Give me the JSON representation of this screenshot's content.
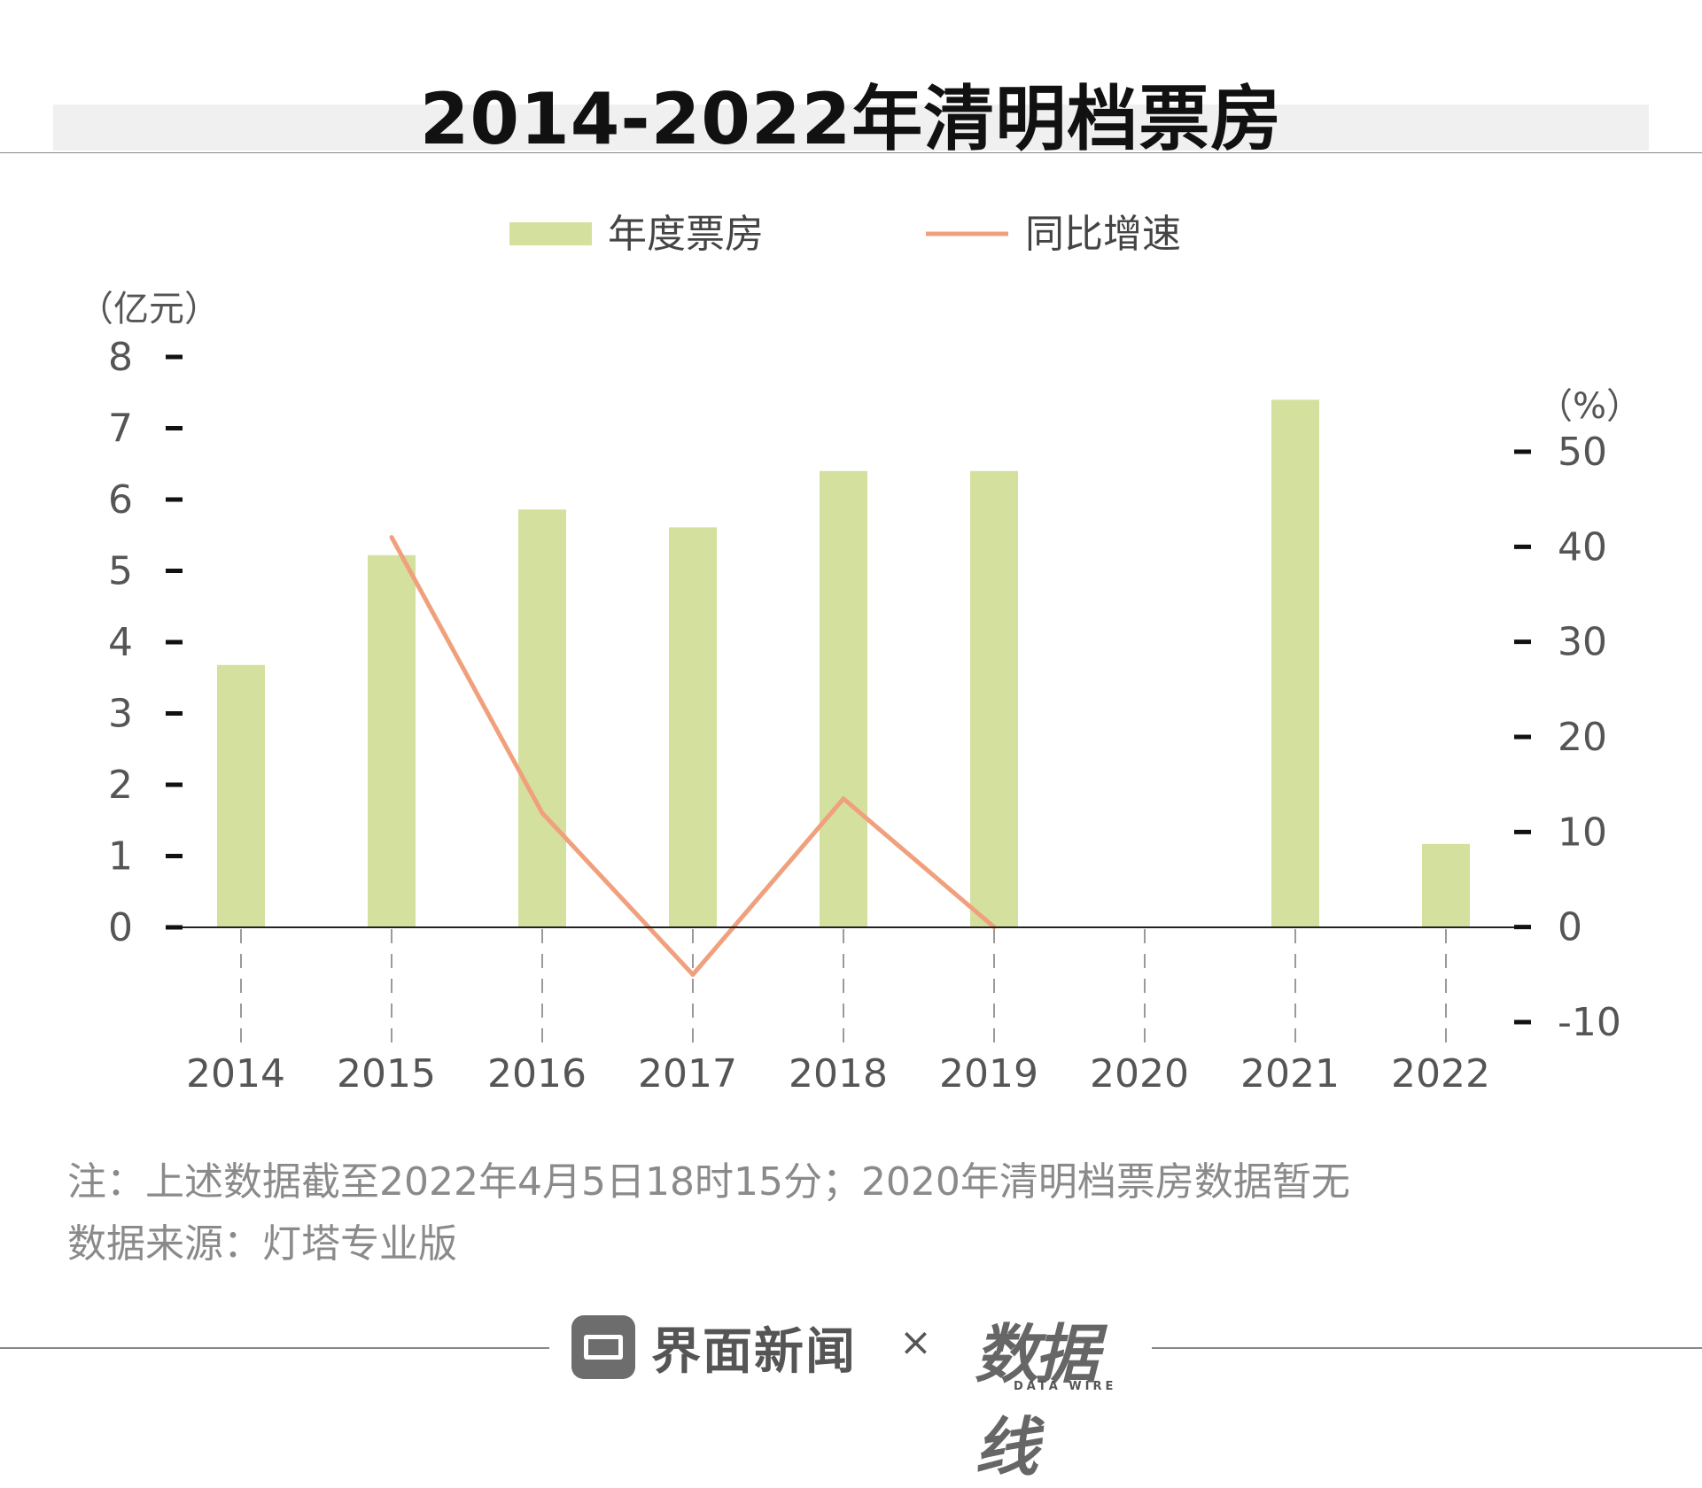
{
  "title": "2014-2022年清明档票房",
  "legend": {
    "bar": "年度票房",
    "line": "同比增速",
    "bar_color": "#d4e09e",
    "line_color": "#f0a07c"
  },
  "chart_data": {
    "type": "bar",
    "categories": [
      "2014",
      "2015",
      "2016",
      "2017",
      "2018",
      "2019",
      "2020",
      "2021",
      "2022"
    ],
    "series": [
      {
        "name": "年度票房",
        "type": "bar",
        "axis": "left",
        "values": [
          3.68,
          5.22,
          5.86,
          5.61,
          6.4,
          6.4,
          null,
          7.4,
          1.17
        ]
      },
      {
        "name": "同比增速",
        "type": "line",
        "axis": "right",
        "values": [
          null,
          41,
          12,
          -5,
          13.5,
          0,
          null,
          null,
          null
        ]
      }
    ],
    "y_left": {
      "unit": "（亿元）",
      "range": [
        0,
        8
      ],
      "ticks": [
        "0",
        "1",
        "2",
        "3",
        "4",
        "5",
        "6",
        "7",
        "8"
      ]
    },
    "y_right": {
      "unit": "（%）",
      "range": [
        -10,
        50
      ],
      "ticks": [
        "-10",
        "0",
        "10",
        "20",
        "30",
        "40",
        "50"
      ]
    },
    "legend_position": "top-center"
  },
  "notes": {
    "line1": "注：上述数据截至2022年4月5日18时15分；2020年清明档票房数据暂无",
    "line2": "数据来源：灯塔专业版"
  },
  "footer": {
    "brand1": "界面新闻",
    "times": "×",
    "brand2": "数据线",
    "brand2_sub": "DATA WIRE"
  }
}
